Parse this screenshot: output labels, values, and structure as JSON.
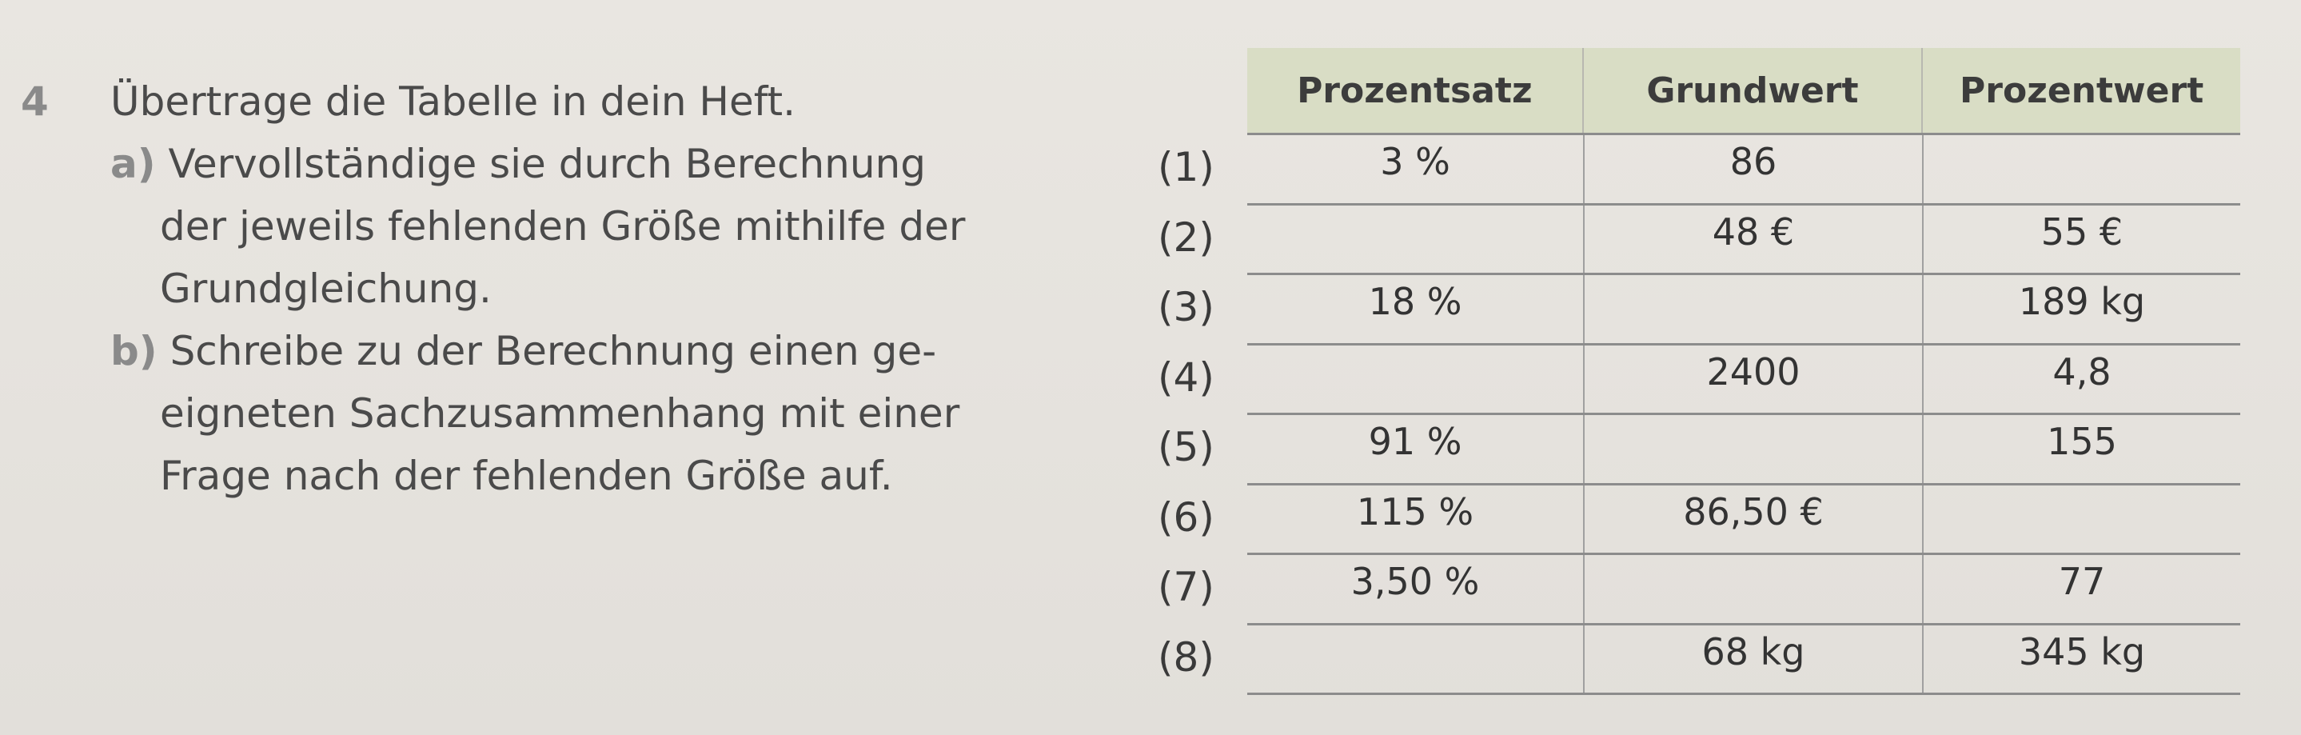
{
  "exercise": {
    "number": "4",
    "instruction": "Übertrage die Tabelle in dein Heft.",
    "part_a": {
      "label": "a)",
      "lines": [
        "Vervollständige sie durch Berechnung",
        "der jeweils fehlenden Größe mithilfe der",
        "Grundgleichung."
      ]
    },
    "part_b": {
      "label": "b)",
      "lines": [
        "Schreibe zu der Berechnung einen ge-",
        "eigneten Sachzusammenhang mit einer",
        "Frage nach der fehlenden Größe auf."
      ]
    }
  },
  "table": {
    "headers": [
      "Prozentsatz",
      "Grundwert",
      "Prozentwert"
    ],
    "rows": [
      {
        "label": "(1)",
        "cells": [
          "3 %",
          "86",
          ""
        ]
      },
      {
        "label": "(2)",
        "cells": [
          "",
          "48 €",
          "55 €"
        ]
      },
      {
        "label": "(3)",
        "cells": [
          "18 %",
          "",
          "189 kg"
        ]
      },
      {
        "label": "(4)",
        "cells": [
          "",
          "2400",
          "4,8"
        ]
      },
      {
        "label": "(5)",
        "cells": [
          "91 %",
          "",
          "155"
        ]
      },
      {
        "label": "(6)",
        "cells": [
          "115 %",
          "86,50 €",
          ""
        ]
      },
      {
        "label": "(7)",
        "cells": [
          "3,50 %",
          "",
          "77"
        ]
      },
      {
        "label": "(8)",
        "cells": [
          "",
          "68 kg",
          "345 kg"
        ]
      }
    ]
  }
}
